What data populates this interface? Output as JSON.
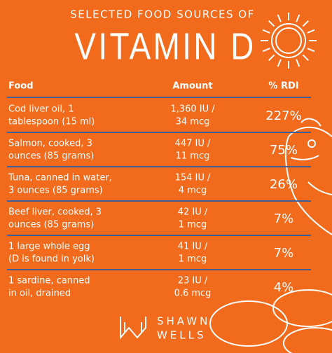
{
  "header": {
    "subtitle": "SELECTED FOOD SOURCES OF",
    "title": "VITAMIN D"
  },
  "table": {
    "columns": [
      "Food",
      "Amount",
      "% RDI"
    ],
    "rows": [
      {
        "food": [
          "Cod liver oil, 1",
          "tablespoon (15 ml)"
        ],
        "amount": [
          "1,360 IU /",
          "34 mcg"
        ],
        "rdi": "227%"
      },
      {
        "food": [
          "Salmon, cooked, 3",
          "ounces (85 grams)"
        ],
        "amount": [
          "447 IU /",
          "11 mcg"
        ],
        "rdi": "75%"
      },
      {
        "food": [
          "Tuna, canned in water,",
          "3 ounces (85 grams)"
        ],
        "amount": [
          "154 IU /",
          "4 mcg"
        ],
        "rdi": "26%"
      },
      {
        "food": [
          "Beef liver, cooked, 3",
          "ounces (85 grams)"
        ],
        "amount": [
          "42 IU /",
          "1 mcg"
        ],
        "rdi": "7%"
      },
      {
        "food": [
          "1 large whole egg",
          "(D is found in yolk)"
        ],
        "amount": [
          "41 IU /",
          "1 mcg"
        ],
        "rdi": "7%"
      },
      {
        "food": [
          "1 sardine, canned",
          "in oil, drained"
        ],
        "amount": [
          "23 IU /",
          "0.6 mcg"
        ],
        "rdi": "4%"
      }
    ]
  },
  "footer": {
    "brand": [
      "SHAWN",
      "WELLS"
    ]
  }
}
